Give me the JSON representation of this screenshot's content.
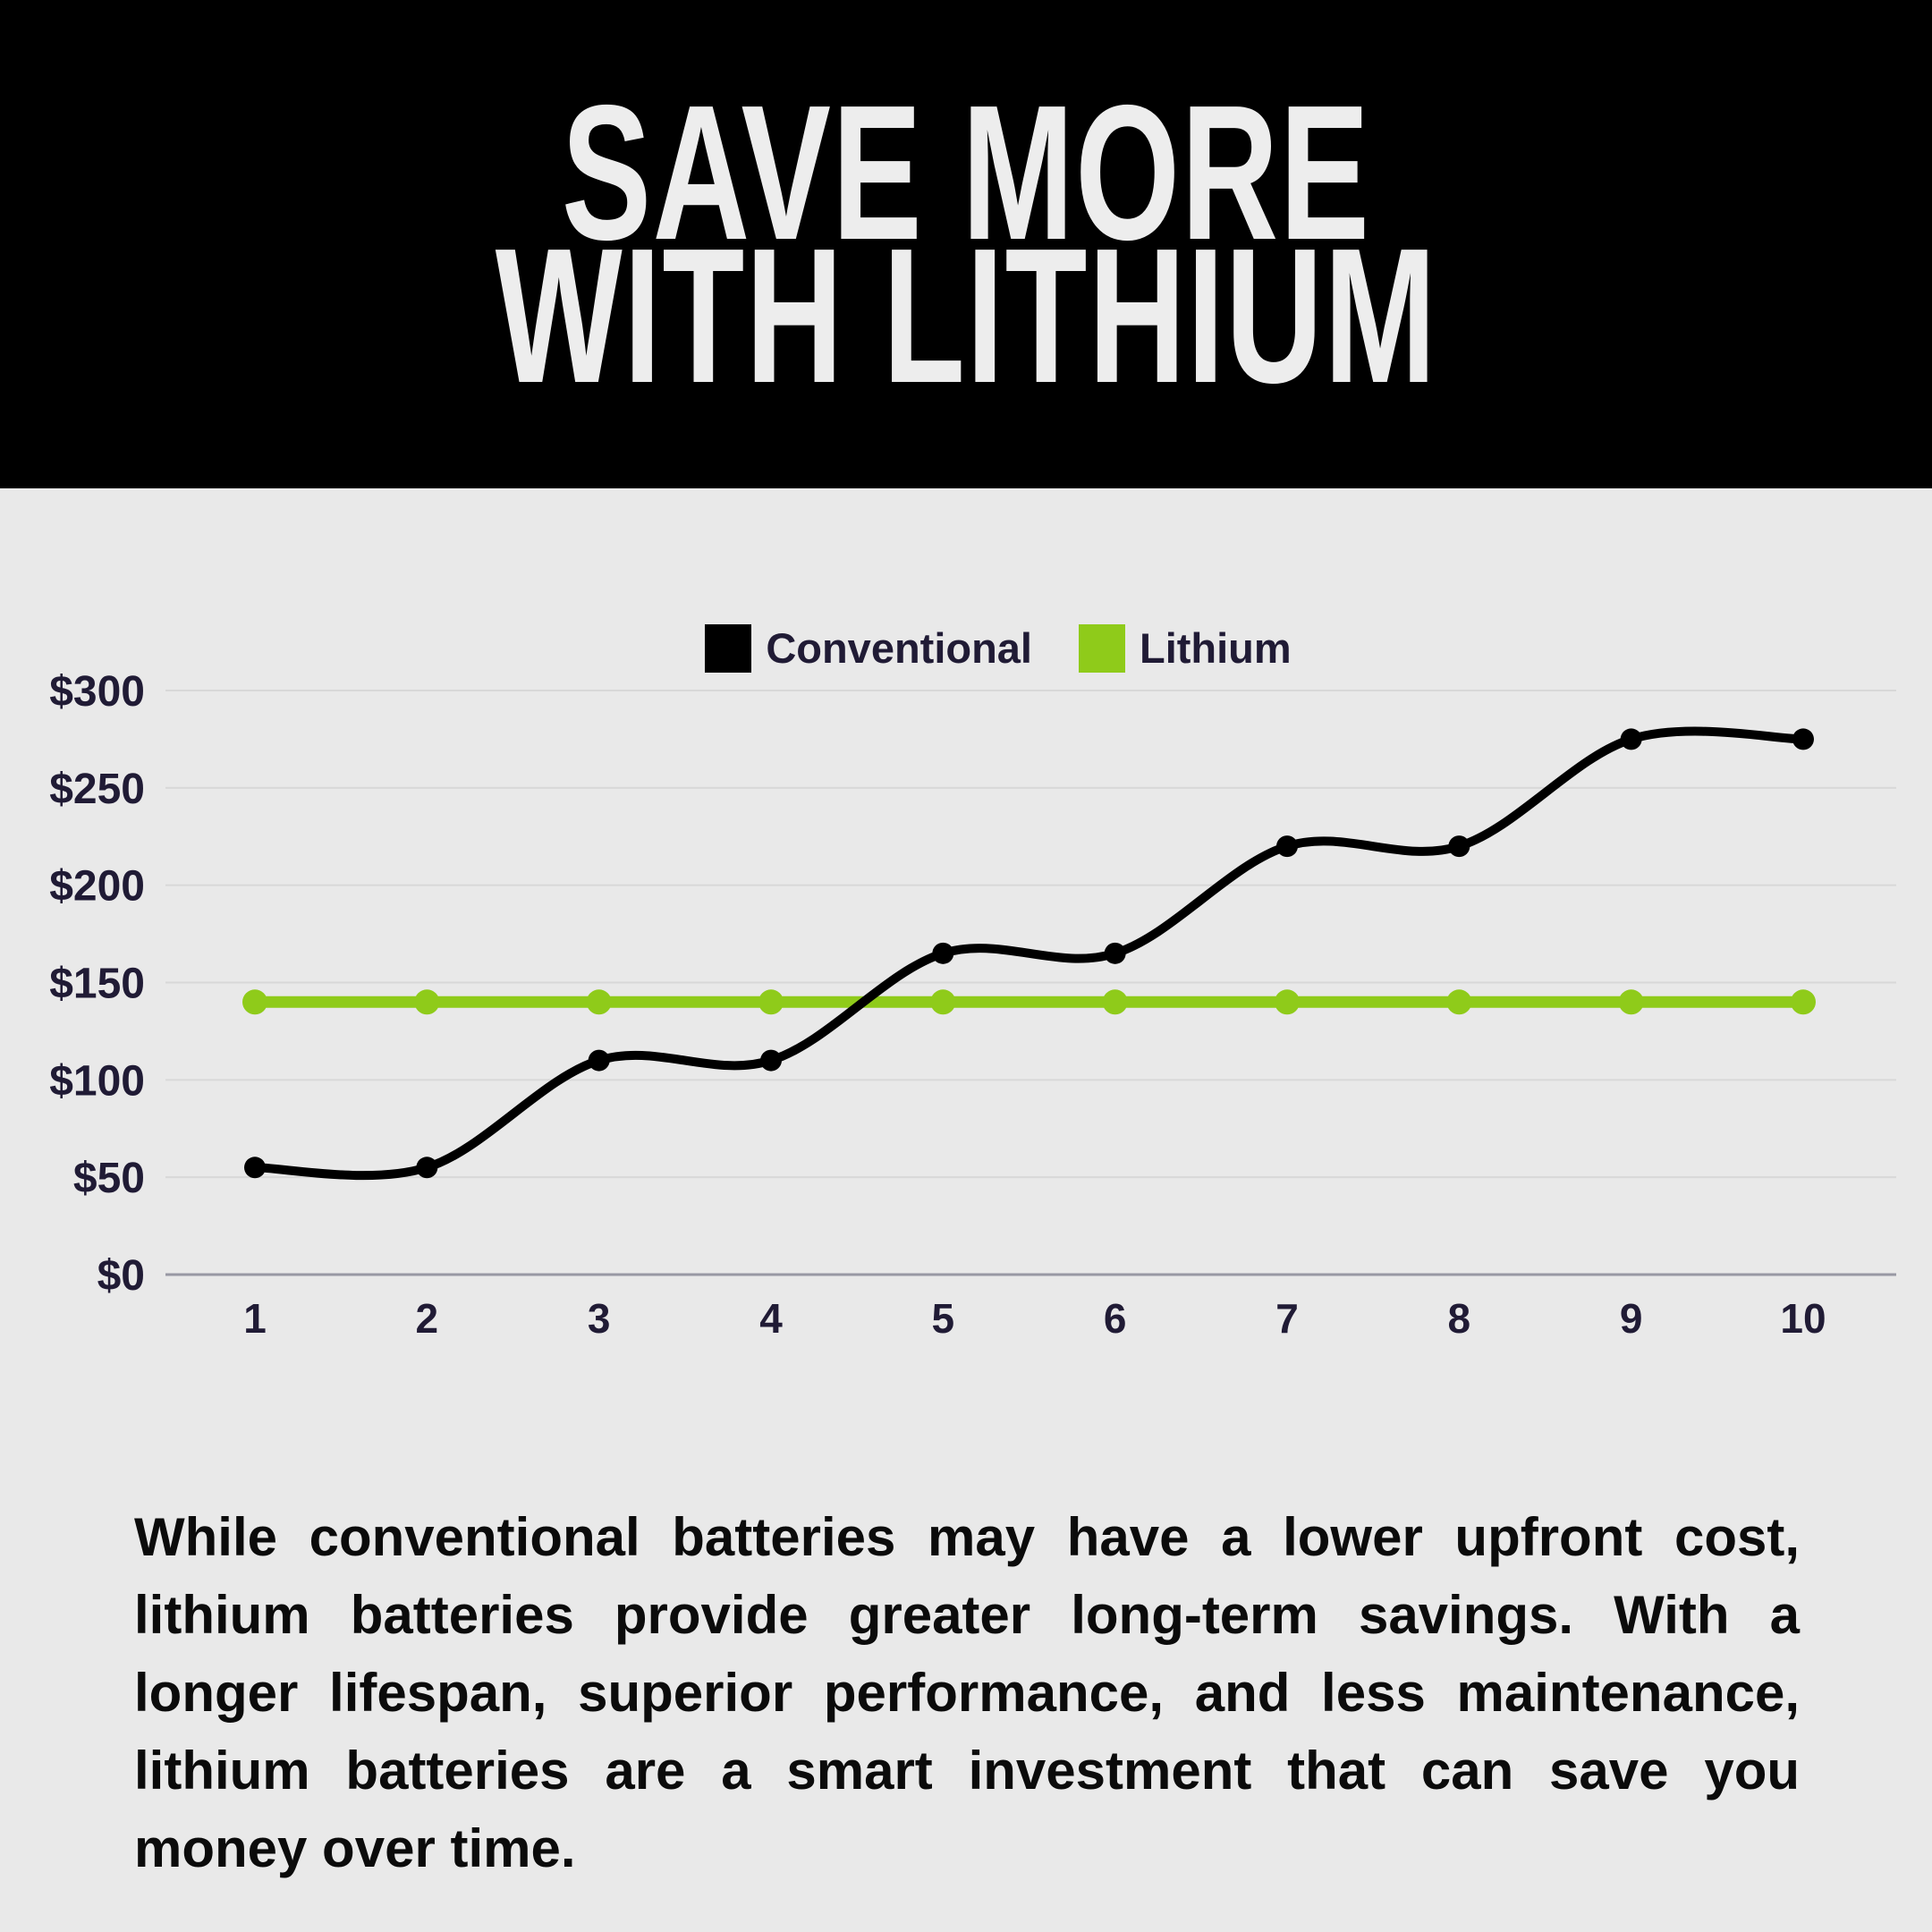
{
  "header": {
    "title_line1": "SAVE MORE",
    "title_line2": "WITH LITHIUM"
  },
  "chart_data": {
    "type": "line",
    "x": [
      1,
      2,
      3,
      4,
      5,
      6,
      7,
      8,
      9,
      10
    ],
    "x_tick_labels": [
      "1",
      "2",
      "3",
      "4",
      "5",
      "6",
      "7",
      "8",
      "9",
      "10"
    ],
    "series": [
      {
        "name": "Conventional",
        "color": "#000000",
        "values": [
          55,
          55,
          110,
          110,
          165,
          165,
          220,
          220,
          275,
          275
        ]
      },
      {
        "name": "Lithium",
        "color": "#8FCB1A",
        "values": [
          140,
          140,
          140,
          140,
          140,
          140,
          140,
          140,
          140,
          140
        ]
      }
    ],
    "title": "",
    "xlabel": "",
    "ylabel": "",
    "ylim": [
      0,
      300
    ],
    "yticks": [
      0,
      50,
      100,
      150,
      200,
      250,
      300
    ],
    "ytick_prefix": "$",
    "grid": true,
    "legend_position": "top-center",
    "line_style": "smooth-with-dot-markers"
  },
  "description": {
    "text": "While conventional batteries may have a lower upfront cost, lithium batteries provide greater long-term savings. With a longer lifespan, superior performance, and less maintenance, lithium batteries are a smart investment that can save you money over time."
  },
  "colors": {
    "header_background": "#000000",
    "title_text": "#EDEDED",
    "page_background": "#E9E9E9",
    "axis_text": "#201B35",
    "gridline": "#D8D8D8",
    "axis_line": "#9898A3",
    "conventional": "#000000",
    "lithium": "#8FCB1A"
  }
}
